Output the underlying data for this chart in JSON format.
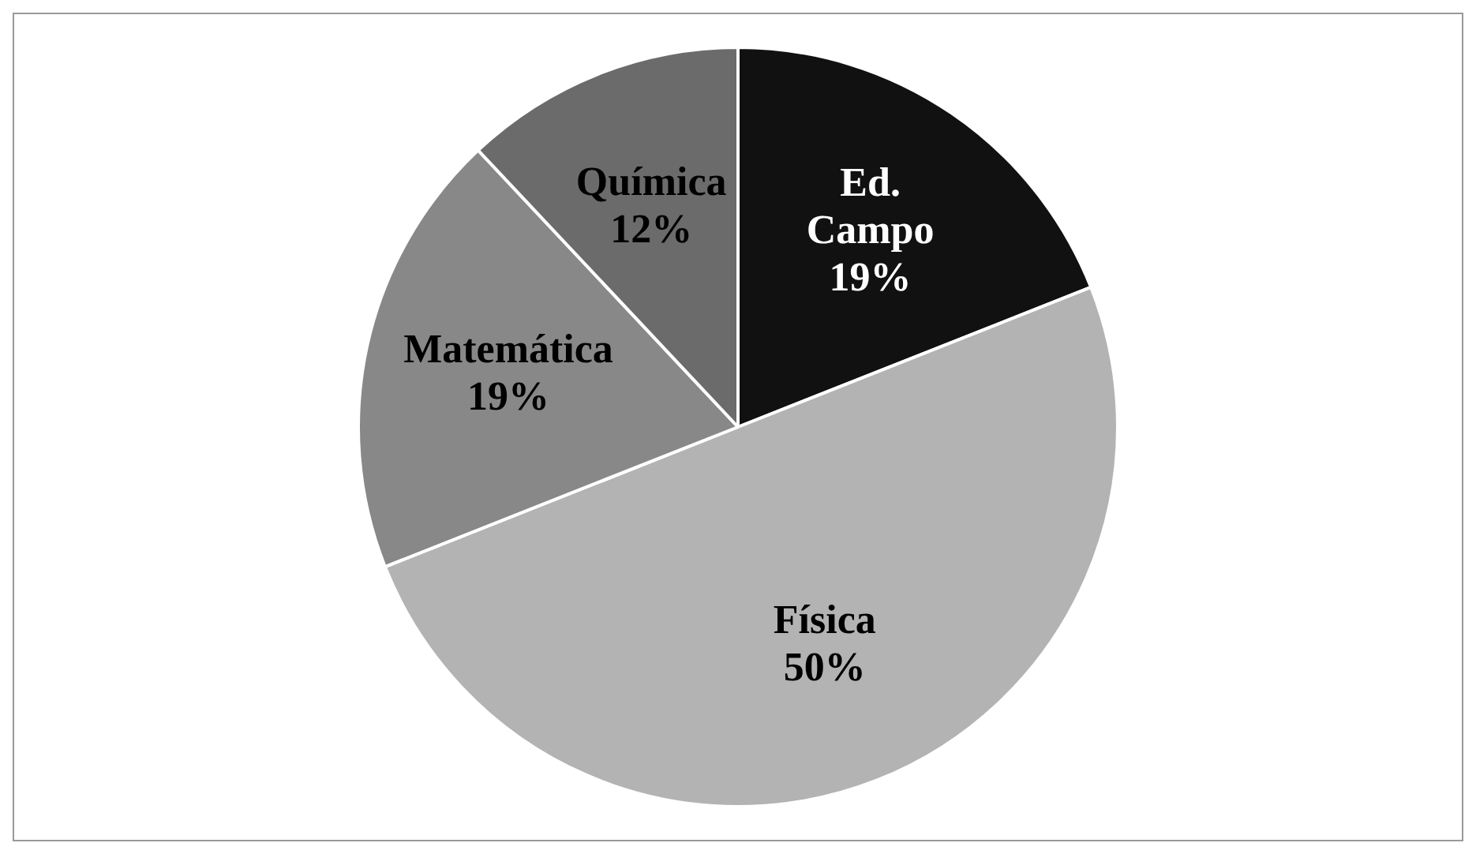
{
  "chart_data": {
    "type": "pie",
    "categories": [
      "Ed. Campo",
      "Física",
      "Matemática",
      "Química"
    ],
    "values": [
      19,
      50,
      19,
      12
    ],
    "value_labels": [
      "19%",
      "50%",
      "19%",
      "12%"
    ],
    "colors": [
      "#111111",
      "#b3b3b3",
      "#888888",
      "#6b6b6b"
    ],
    "legend": false
  }
}
